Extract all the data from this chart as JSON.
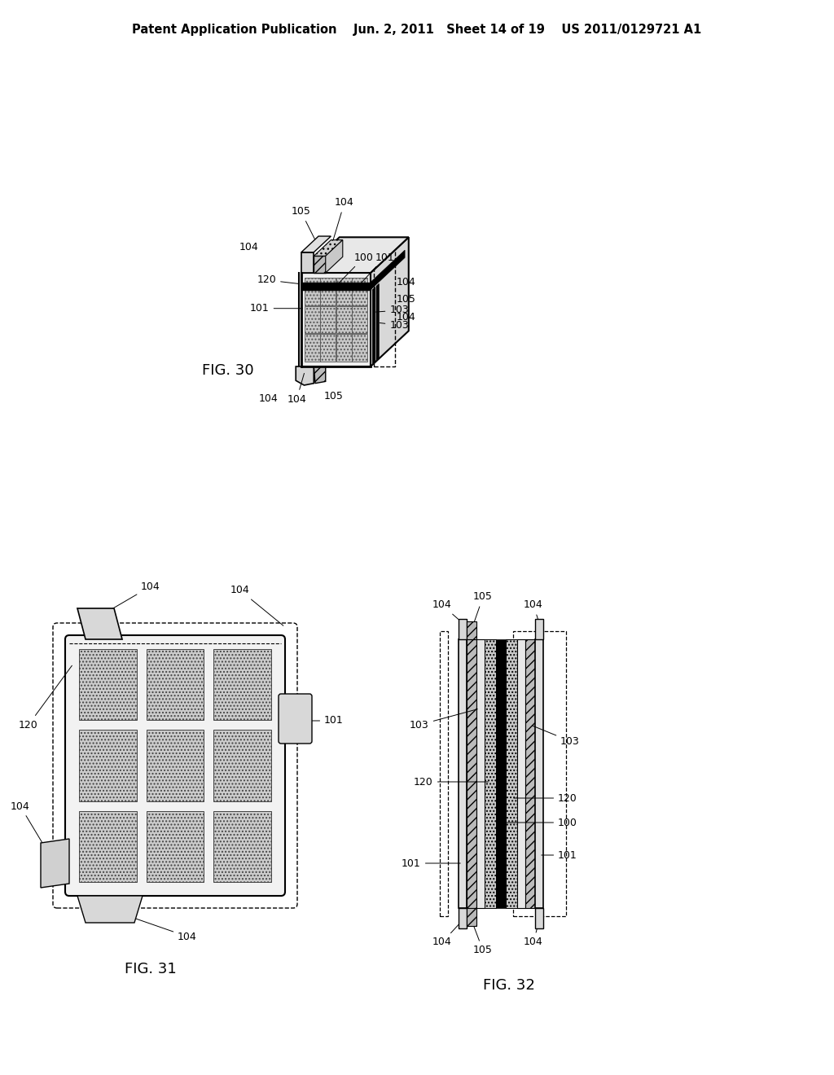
{
  "bg": "#ffffff",
  "header": "Patent Application Publication    Jun. 2, 2011   Sheet 14 of 19    US 2011/0129721 A1",
  "fig30_label": "FIG. 30",
  "fig31_label": "FIG. 31",
  "fig32_label": "FIG. 32",
  "anno_fs": 9,
  "label_fs": 13
}
